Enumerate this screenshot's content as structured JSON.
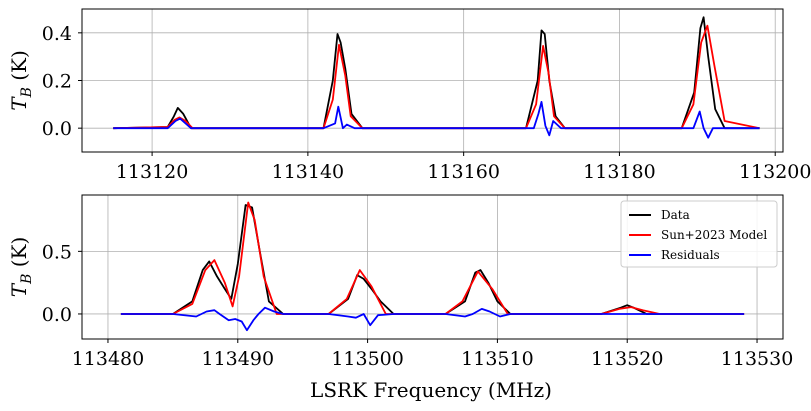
{
  "chart_data": [
    {
      "type": "line",
      "title": "",
      "xlabel": "",
      "ylabel": "T_B (K)",
      "xlim": [
        113111,
        113201
      ],
      "ylim": [
        -0.1,
        0.5
      ],
      "x_ticks": [
        113120,
        113140,
        113160,
        113180,
        113200
      ],
      "y_ticks": [
        0.0,
        0.2,
        0.4
      ],
      "x_tick_labels": [
        "113120",
        "113140",
        "113160",
        "113180",
        "113200"
      ],
      "y_tick_labels": [
        "0.0",
        "0.2",
        "0.4"
      ],
      "grid": true,
      "x_range_data": [
        113115,
        113198
      ],
      "series": [
        {
          "name": "Data",
          "color": "#000000",
          "x": [
            113115,
            113122,
            113122.8,
            113123.3,
            113124,
            113125,
            113142,
            113143.2,
            113143.8,
            113144.2,
            113144.8,
            113145.6,
            113147,
            113168,
            113169.5,
            113170,
            113170.4,
            113171,
            113171.8,
            113173,
            113188,
            113189.6,
            113190.4,
            113190.8,
            113191.4,
            113192.3,
            113193.5,
            113198
          ],
          "values": [
            0.0,
            0.005,
            0.05,
            0.085,
            0.06,
            0.0,
            0.0,
            0.2,
            0.395,
            0.36,
            0.25,
            0.06,
            0.0,
            0.0,
            0.2,
            0.41,
            0.395,
            0.2,
            0.05,
            0.0,
            0.0,
            0.15,
            0.42,
            0.465,
            0.3,
            0.08,
            0.0,
            0.0
          ]
        },
        {
          "name": "Sun+2023 Model",
          "color": "#ff0000",
          "x": [
            113115,
            113122,
            113122.9,
            113123.5,
            113124.3,
            113125.2,
            113142,
            113143.2,
            113144,
            113144.8,
            113145.5,
            113147,
            113168,
            113169.3,
            113170.2,
            113170.9,
            113171.6,
            113173,
            113188,
            113189.5,
            113190.5,
            113191.3,
            113192.2,
            113193.5,
            113198
          ],
          "values": [
            0.0,
            0.005,
            0.035,
            0.045,
            0.03,
            0.0,
            0.0,
            0.12,
            0.35,
            0.22,
            0.05,
            0.0,
            0.0,
            0.1,
            0.345,
            0.23,
            0.05,
            0.0,
            0.0,
            0.1,
            0.36,
            0.43,
            0.26,
            0.03,
            0.0
          ]
        },
        {
          "name": "Residuals",
          "color": "#0000ff",
          "x": [
            113115,
            113122,
            113123,
            113123.6,
            113125,
            113142,
            113143.5,
            113143.9,
            113144.5,
            113145,
            113146,
            113168,
            113169,
            113169.6,
            113170,
            113170.5,
            113171,
            113171.5,
            113172.5,
            113188,
            113189.5,
            113190.3,
            113190.8,
            113191.4,
            113192,
            113193,
            113198
          ],
          "values": [
            0.0,
            0.0,
            0.03,
            0.04,
            0.0,
            0.0,
            0.02,
            0.09,
            0.0,
            0.015,
            0.0,
            0.0,
            0.0,
            0.06,
            0.11,
            0.01,
            -0.03,
            0.03,
            0.0,
            0.0,
            0.0,
            0.07,
            0.0,
            -0.04,
            0.0,
            0.0,
            0.0
          ]
        }
      ]
    },
    {
      "type": "line",
      "title": "",
      "xlabel": "LSRK Frequency (MHz)",
      "ylabel": "T_B (K)",
      "xlim": [
        113478,
        113532
      ],
      "ylim": [
        -0.2,
        0.95
      ],
      "x_ticks": [
        113480,
        113490,
        113500,
        113510,
        113520,
        113530
      ],
      "y_ticks": [
        0.0,
        0.5
      ],
      "x_tick_labels": [
        "113480",
        "113490",
        "113500",
        "113510",
        "113520",
        "113530"
      ],
      "y_tick_labels": [
        "0.0",
        "0.5"
      ],
      "grid": true,
      "legend": {
        "position": "top-right",
        "entries": [
          "Data",
          "Sun+2023 Model",
          "Residuals"
        ]
      },
      "x_range_data": [
        113481,
        113529
      ],
      "series": [
        {
          "name": "Data",
          "color": "#000000",
          "x": [
            113481,
            113485,
            113486.5,
            113487.3,
            113487.8,
            113488.4,
            113489,
            113489.5,
            113490,
            113490.6,
            113491.1,
            113491.7,
            113492.4,
            113493.5,
            113497,
            113498.5,
            113499.2,
            113499.7,
            113500.3,
            113501,
            113502,
            113506,
            113507.5,
            113508.3,
            113508.7,
            113509.3,
            113510,
            113511,
            113518,
            113519.5,
            113520,
            113520.5,
            113521.5,
            113529
          ],
          "values": [
            0.0,
            0.0,
            0.1,
            0.35,
            0.42,
            0.3,
            0.2,
            0.12,
            0.4,
            0.87,
            0.85,
            0.5,
            0.1,
            0.0,
            0.0,
            0.12,
            0.31,
            0.28,
            0.2,
            0.1,
            0.0,
            0.0,
            0.1,
            0.33,
            0.35,
            0.25,
            0.1,
            0.0,
            0.0,
            0.05,
            0.07,
            0.05,
            0.0,
            0.0
          ]
        },
        {
          "name": "Sun+2023 Model",
          "color": "#ff0000",
          "x": [
            113481,
            113485,
            113486.5,
            113487.5,
            113488.2,
            113489,
            113489.6,
            113490.1,
            113490.8,
            113491.3,
            113492,
            113493,
            113497,
            113498.4,
            113499.4,
            113500.3,
            113501.4,
            113506,
            113507.3,
            113508.5,
            113509.6,
            113510.8,
            113518,
            113519.4,
            113520.3,
            113521.2,
            113522.5,
            113529
          ],
          "values": [
            0.0,
            0.0,
            0.08,
            0.35,
            0.43,
            0.25,
            0.06,
            0.3,
            0.89,
            0.75,
            0.3,
            0.0,
            0.0,
            0.12,
            0.35,
            0.22,
            0.0,
            0.0,
            0.1,
            0.34,
            0.2,
            0.0,
            0.0,
            0.04,
            0.055,
            0.03,
            0.0,
            0.0
          ]
        },
        {
          "name": "Residuals",
          "color": "#0000ff",
          "x": [
            113481,
            113485,
            113486.8,
            113487.6,
            113488.2,
            113488.6,
            113489.3,
            113489.8,
            113490.3,
            113490.7,
            113491.2,
            113491.6,
            113492.1,
            113492.8,
            113493.5,
            113497,
            113498.5,
            113499.1,
            113499.7,
            113500.2,
            113500.8,
            113502,
            113506,
            113507.5,
            113508.1,
            113508.8,
            113509.4,
            113510.2,
            113511,
            113529
          ],
          "values": [
            0.0,
            0.0,
            -0.02,
            0.02,
            0.03,
            0.0,
            -0.05,
            -0.04,
            -0.06,
            -0.13,
            -0.05,
            0.0,
            0.05,
            0.02,
            0.0,
            0.0,
            -0.02,
            -0.03,
            0.0,
            -0.09,
            -0.01,
            0.0,
            0.0,
            -0.02,
            0.0,
            0.04,
            0.02,
            -0.02,
            0.0,
            0.0
          ]
        }
      ]
    }
  ]
}
